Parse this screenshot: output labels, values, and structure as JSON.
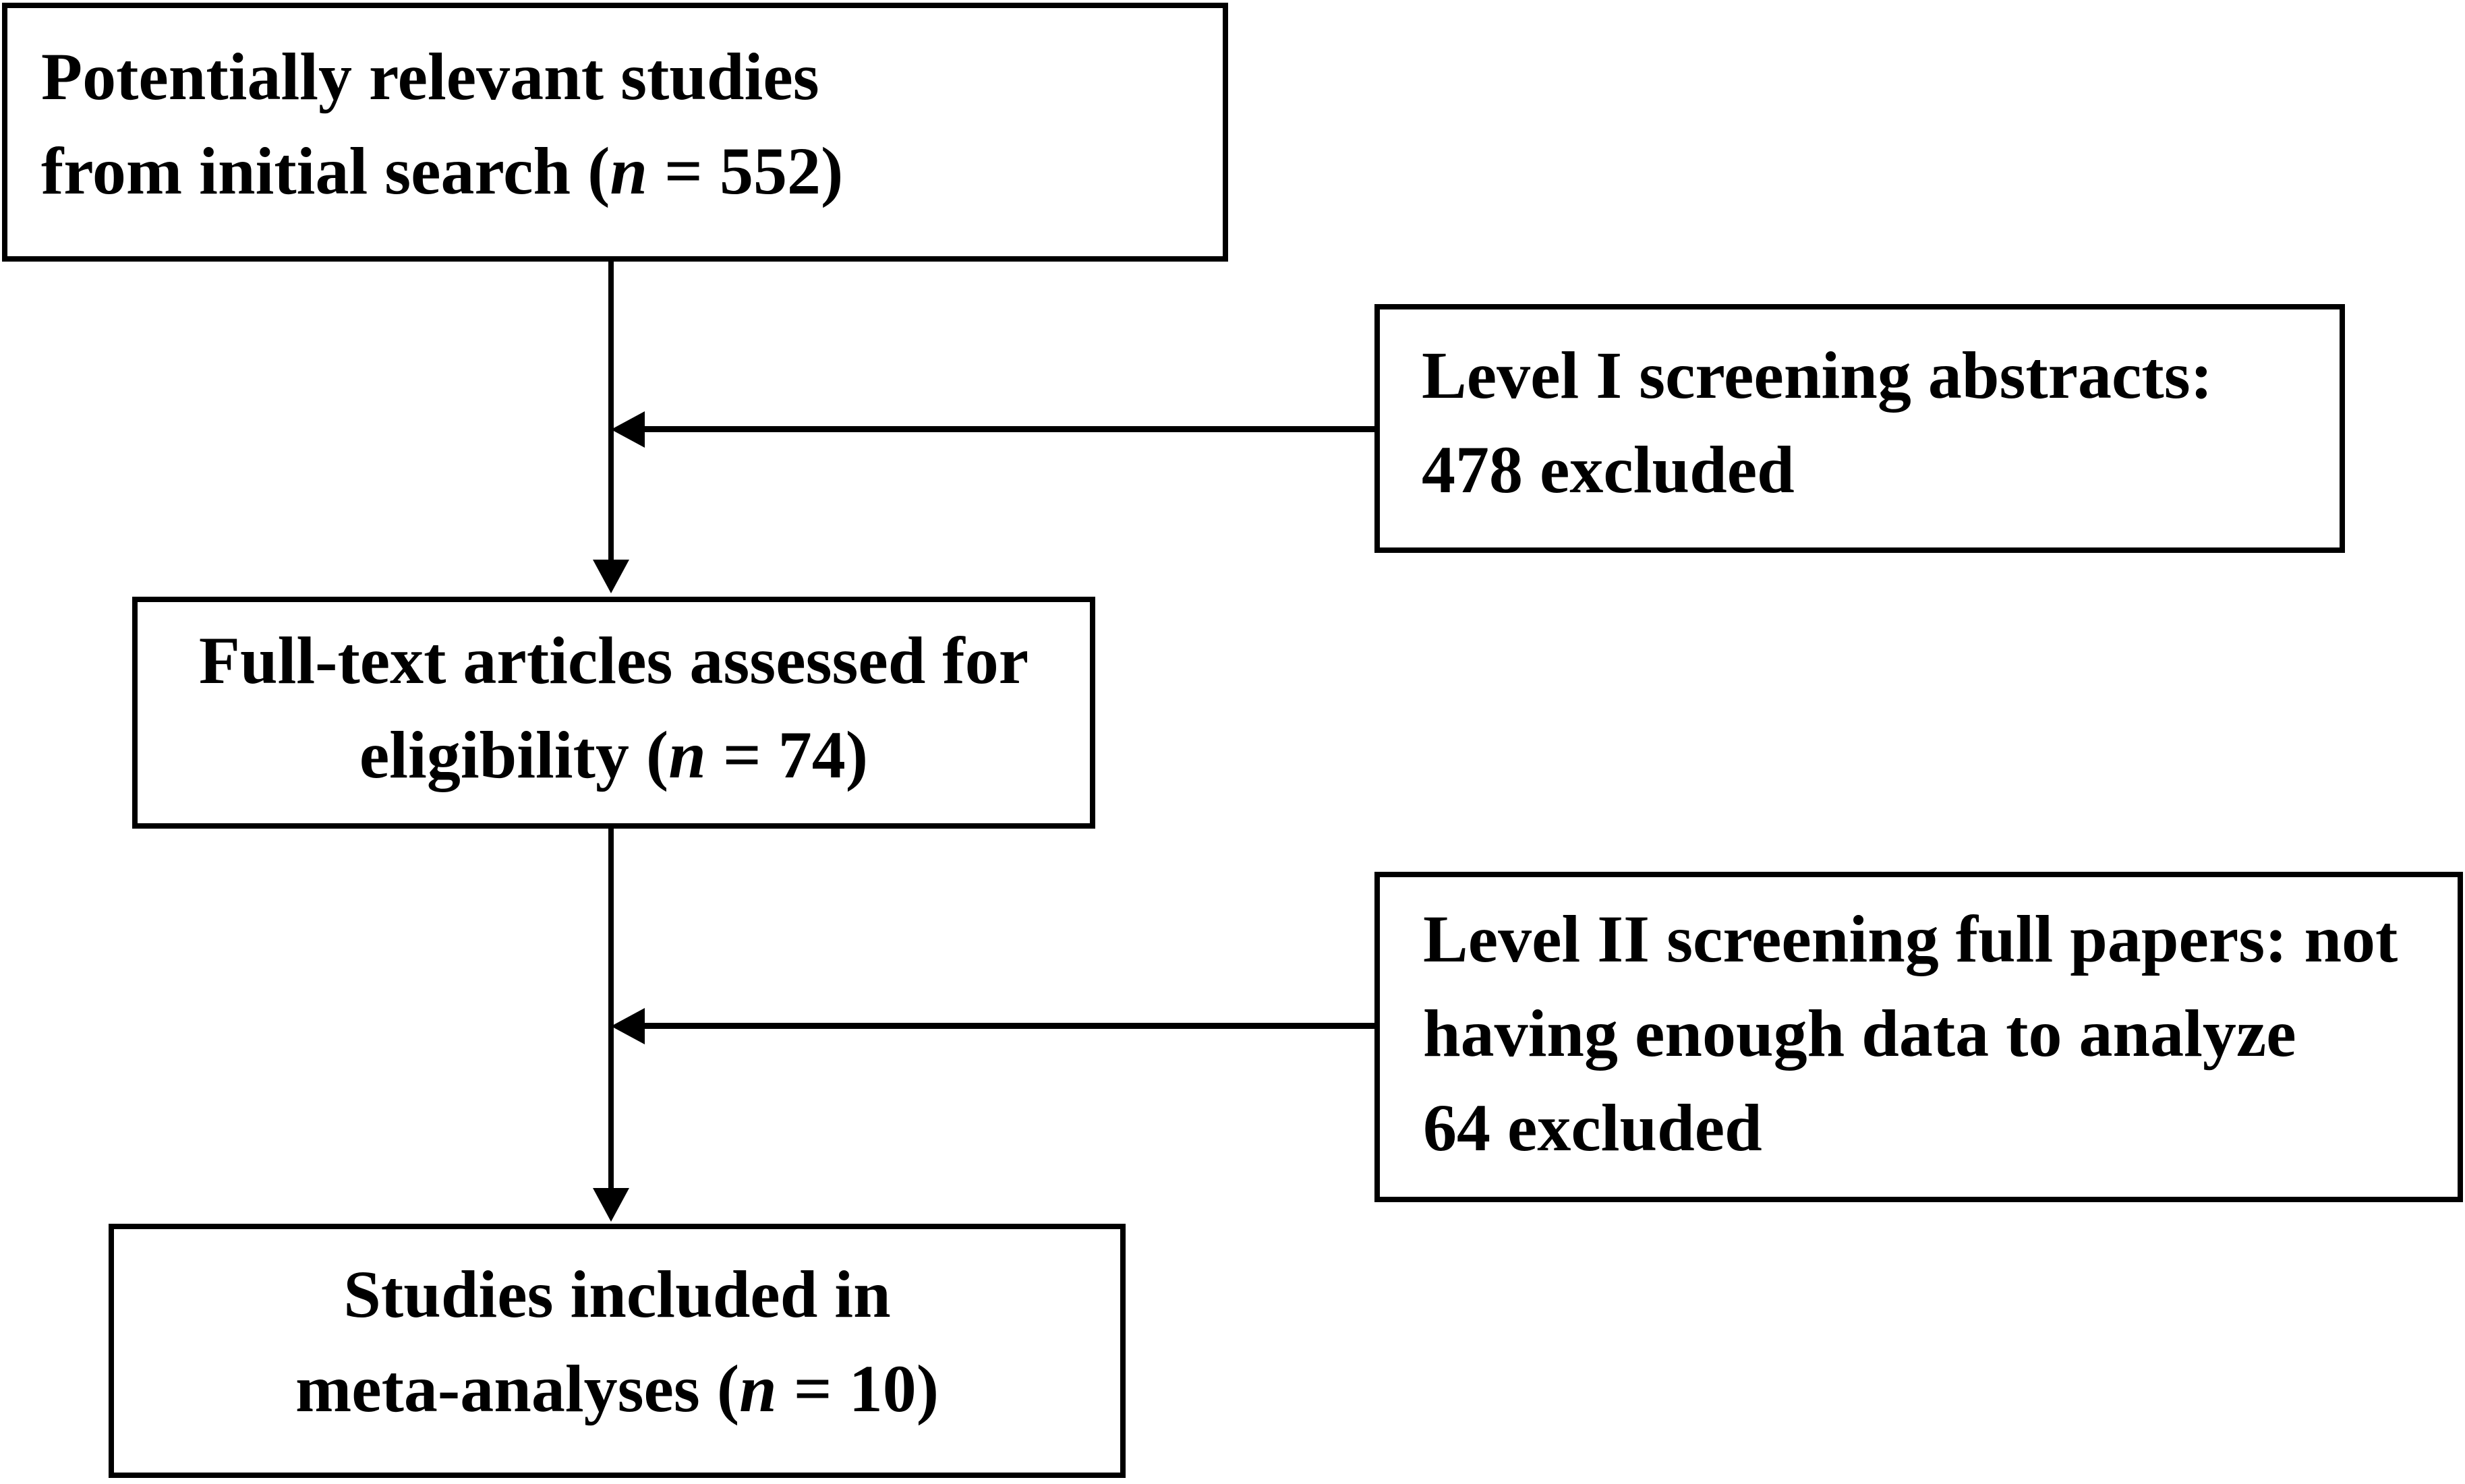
{
  "colors": {
    "ink": "#000000",
    "background": "#ffffff"
  },
  "flow": {
    "initial": {
      "lines": [
        {
          "pre": "Potentially relevant studies"
        },
        {
          "pre": "from initial search (",
          "var": "n",
          "post": " = 552)"
        }
      ]
    },
    "level1": {
      "lines": [
        {
          "pre": "Level I screening abstracts:"
        },
        {
          "pre": "478 excluded"
        }
      ]
    },
    "fulltext": {
      "lines": [
        {
          "pre": "Full-text articles assessed for"
        },
        {
          "pre": "eligibility (",
          "var": "n",
          "post": " = 74)"
        }
      ]
    },
    "level2": {
      "lines": [
        {
          "pre": "Level II screening full papers: not"
        },
        {
          "pre": "having enough data to analyze"
        },
        {
          "pre": "64 excluded"
        }
      ]
    },
    "included": {
      "lines": [
        {
          "pre": "Studies included in"
        },
        {
          "pre": "meta-analyses (",
          "var": "n",
          "post": " = 10)"
        }
      ]
    }
  }
}
